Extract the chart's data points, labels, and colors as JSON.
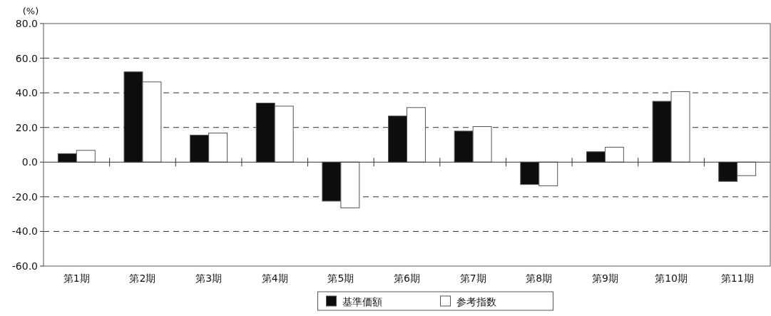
{
  "chart_data": {
    "type": "bar",
    "ylabel": "(%)",
    "categories": [
      "第1期",
      "第2期",
      "第3期",
      "第4期",
      "第5期",
      "第6期",
      "第7期",
      "第8期",
      "第9期",
      "第10期",
      "第11期"
    ],
    "series": [
      {
        "name": "基準価額",
        "color": "#0d0d0d",
        "values": [
          4.9,
          52.1,
          15.6,
          34.1,
          -22.5,
          26.6,
          17.9,
          -12.9,
          6.0,
          35.1,
          -11.1
        ]
      },
      {
        "name": "参考指数",
        "color": "#ffffff",
        "values": [
          6.8,
          46.3,
          16.8,
          32.3,
          -26.4,
          31.5,
          20.5,
          -13.7,
          8.6,
          40.7,
          -7.8
        ]
      }
    ],
    "ylim": [
      -60,
      80
    ],
    "yticks": [
      {
        "value": -60,
        "label": "-60.0"
      },
      {
        "value": -40,
        "label": "-40.0"
      },
      {
        "value": -20,
        "label": "-20.0"
      },
      {
        "value": 0,
        "label": "0.0"
      },
      {
        "value": 20,
        "label": "20.0"
      },
      {
        "value": 40,
        "label": "40.0"
      },
      {
        "value": 60,
        "label": "60.0"
      },
      {
        "value": 80,
        "label": "80.0"
      }
    ],
    "grid": "y",
    "legend": "bottom"
  }
}
